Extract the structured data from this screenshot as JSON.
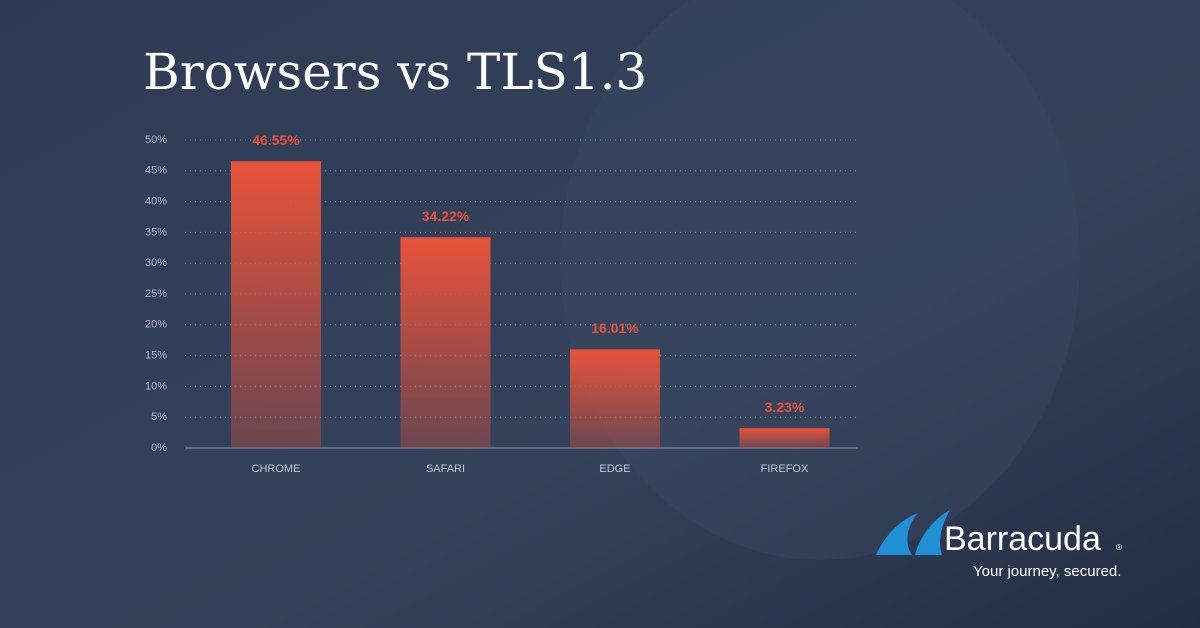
{
  "chart_data": {
    "type": "bar",
    "title": "Browsers vs TLS1.3",
    "categories": [
      "CHROME",
      "SAFARI",
      "EDGE",
      "FIREFOX"
    ],
    "values": [
      46.55,
      34.22,
      16.01,
      3.23
    ],
    "value_labels": [
      "46.55%",
      "34.22%",
      "16.01%",
      "3.23%"
    ],
    "color": "#e8533a",
    "ylim": [
      0,
      50
    ],
    "yticks": [
      {
        "value": 0,
        "label": "0%"
      },
      {
        "value": 5,
        "label": "5%"
      },
      {
        "value": 10,
        "label": "10%"
      },
      {
        "value": 15,
        "label": "15%"
      },
      {
        "value": 20,
        "label": "20%"
      },
      {
        "value": 25,
        "label": "25%"
      },
      {
        "value": 30,
        "label": "30%"
      },
      {
        "value": 35,
        "label": "35%"
      },
      {
        "value": 40,
        "label": "40%"
      },
      {
        "value": 45,
        "label": "45%"
      },
      {
        "value": 50,
        "label": "50%"
      }
    ],
    "grid": true
  },
  "logo": {
    "name": "Barracuda",
    "mark": "®",
    "tagline": "Your journey, secured."
  }
}
